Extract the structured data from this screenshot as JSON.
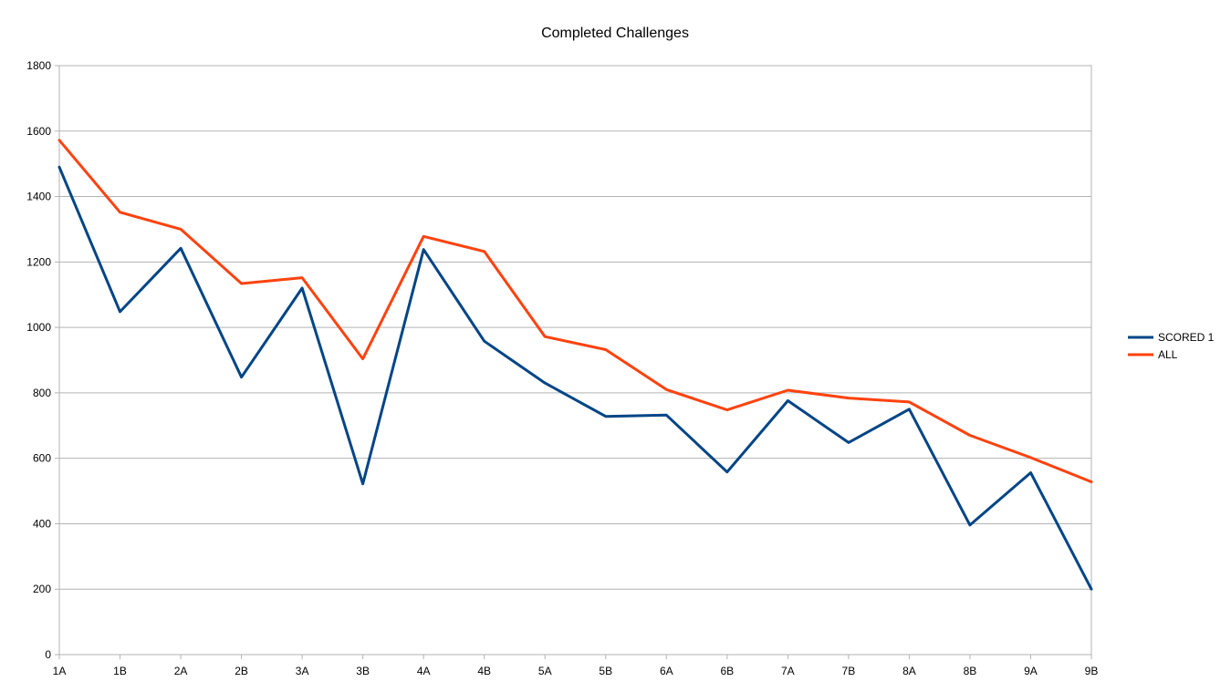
{
  "chart_data": {
    "type": "line",
    "title": "Completed Challenges",
    "xlabel": "",
    "ylabel": "",
    "categories": [
      "1A",
      "1B",
      "2A",
      "2B",
      "3A",
      "3B",
      "4A",
      "4B",
      "5A",
      "5B",
      "6A",
      "6B",
      "7A",
      "7B",
      "8A",
      "8B",
      "9A",
      "9B"
    ],
    "ylim": [
      0,
      1800
    ],
    "yticks": [
      0,
      200,
      400,
      600,
      800,
      1000,
      1200,
      1400,
      1600,
      1800
    ],
    "grid": true,
    "legend_position": "right",
    "series": [
      {
        "name": "SCORED 1",
        "color": "#004586",
        "values": [
          1490,
          1048,
          1242,
          848,
          1120,
          522,
          1238,
          958,
          830,
          728,
          732,
          558,
          776,
          648,
          750,
          396,
          556,
          200
        ]
      },
      {
        "name": "ALL",
        "color": "#ff420e",
        "values": [
          1572,
          1352,
          1300,
          1134,
          1152,
          904,
          1278,
          1232,
          972,
          932,
          810,
          748,
          808,
          784,
          772,
          670,
          602,
          528
        ]
      }
    ]
  }
}
